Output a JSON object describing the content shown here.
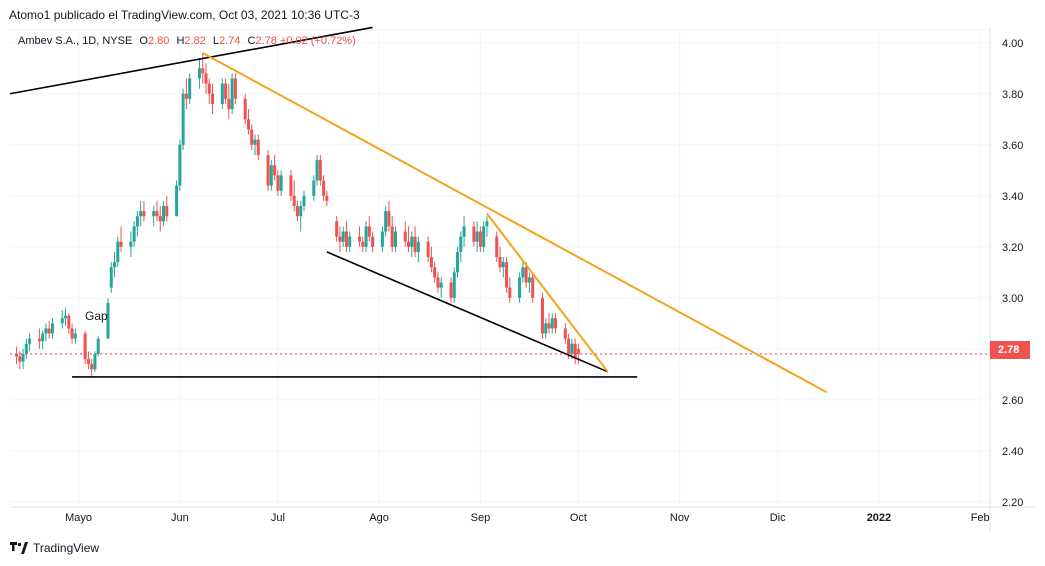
{
  "header": "Atomo1 publicado el TradingView.com, Oct 03, 2021 10:36 UTC-3",
  "legend": {
    "symbol": "Ambev S.A., 1D, NYSE",
    "o_label": "O",
    "o_value": "2.80",
    "h_label": "H",
    "h_value": "2.82",
    "l_label": "L",
    "l_value": "2.74",
    "c_label": "C",
    "c_value": "2.78",
    "change": "+0.02 (+0.72%)"
  },
  "annotation": "Gap",
  "footer": "TradingView",
  "colors": {
    "up": "#26a69a",
    "down": "#ef5350",
    "trend_orange": "#f7a21b",
    "trend_black": "#000000",
    "last_price": "#ef5350"
  },
  "chart_data": {
    "type": "candlestick",
    "y_axis": {
      "ticks": [
        4.0,
        3.8,
        3.6,
        3.4,
        3.2,
        3.0,
        2.8,
        2.6,
        2.4,
        2.2
      ],
      "tick_labels": [
        "4.00",
        "3.80",
        "3.60",
        "3.40",
        "3.20",
        "3.00",
        "2.80",
        "2.60",
        "2.40",
        "2.20"
      ],
      "range": [
        2.18,
        4.05
      ],
      "position": "right"
    },
    "x_axis": {
      "labels": [
        "Mayo",
        "Jun",
        "Jul",
        "Ago",
        "Sep",
        "Oct",
        "Nov",
        "Dic",
        "2022",
        "Feb"
      ],
      "range": [
        "2021-04-10",
        "2022-02-04"
      ]
    },
    "last_price": 2.78,
    "last_price_label": "2.78",
    "candles": [
      [
        "2021-04-12",
        2.78,
        2.81,
        2.74,
        2.77
      ],
      [
        "2021-04-13",
        2.77,
        2.79,
        2.72,
        2.75
      ],
      [
        "2021-04-14",
        2.75,
        2.8,
        2.72,
        2.78
      ],
      [
        "2021-04-15",
        2.78,
        2.84,
        2.76,
        2.82
      ],
      [
        "2021-04-16",
        2.82,
        2.86,
        2.79,
        2.84
      ],
      [
        "2021-04-19",
        2.84,
        2.88,
        2.8,
        2.83
      ],
      [
        "2021-04-20",
        2.83,
        2.87,
        2.8,
        2.86
      ],
      [
        "2021-04-21",
        2.86,
        2.9,
        2.83,
        2.88
      ],
      [
        "2021-04-22",
        2.88,
        2.91,
        2.84,
        2.86
      ],
      [
        "2021-04-23",
        2.86,
        2.92,
        2.84,
        2.9
      ],
      [
        "2021-04-26",
        2.9,
        2.95,
        2.88,
        2.92
      ],
      [
        "2021-04-27",
        2.92,
        2.96,
        2.89,
        2.93
      ],
      [
        "2021-04-28",
        2.93,
        2.94,
        2.86,
        2.88
      ],
      [
        "2021-04-29",
        2.88,
        2.9,
        2.82,
        2.84
      ],
      [
        "2021-04-30",
        2.84,
        2.88,
        2.82,
        2.86
      ],
      [
        "2021-05-03",
        2.86,
        2.87,
        2.74,
        2.76
      ],
      [
        "2021-05-04",
        2.76,
        2.79,
        2.72,
        2.74
      ],
      [
        "2021-05-05",
        2.74,
        2.76,
        2.69,
        2.72
      ],
      [
        "2021-05-06",
        2.72,
        2.79,
        2.71,
        2.78
      ],
      [
        "2021-05-07",
        2.78,
        2.85,
        2.77,
        2.84
      ],
      [
        "2021-05-10",
        2.84,
        3.0,
        2.84,
        2.98
      ],
      [
        "2021-05-11",
        3.04,
        3.14,
        3.02,
        3.12
      ],
      [
        "2021-05-12",
        3.12,
        3.18,
        3.08,
        3.14
      ],
      [
        "2021-05-13",
        3.14,
        3.24,
        3.12,
        3.22
      ],
      [
        "2021-05-14",
        3.22,
        3.28,
        3.18,
        3.2
      ],
      [
        "2021-05-17",
        3.2,
        3.26,
        3.16,
        3.22
      ],
      [
        "2021-05-18",
        3.22,
        3.3,
        3.2,
        3.28
      ],
      [
        "2021-05-19",
        3.28,
        3.34,
        3.24,
        3.32
      ],
      [
        "2021-05-20",
        3.32,
        3.38,
        3.28,
        3.34
      ],
      [
        "2021-05-21",
        3.34,
        3.38,
        3.3,
        3.32
      ],
      [
        "2021-05-24",
        3.32,
        3.36,
        3.28,
        3.34
      ],
      [
        "2021-05-25",
        3.34,
        3.38,
        3.3,
        3.32
      ],
      [
        "2021-05-26",
        3.32,
        3.36,
        3.26,
        3.3
      ],
      [
        "2021-05-27",
        3.3,
        3.38,
        3.28,
        3.36
      ],
      [
        "2021-05-28",
        3.36,
        3.4,
        3.3,
        3.32
      ],
      [
        "2021-05-31",
        3.32,
        3.46,
        3.32,
        3.44
      ],
      [
        "2021-06-01",
        3.44,
        3.62,
        3.42,
        3.6
      ],
      [
        "2021-06-02",
        3.6,
        3.82,
        3.58,
        3.8
      ],
      [
        "2021-06-03",
        3.8,
        3.86,
        3.74,
        3.78
      ],
      [
        "2021-06-04",
        3.78,
        3.88,
        3.76,
        3.86
      ],
      [
        "2021-06-07",
        3.86,
        3.94,
        3.82,
        3.9
      ],
      [
        "2021-06-08",
        3.9,
        3.96,
        3.84,
        3.88
      ],
      [
        "2021-06-09",
        3.88,
        3.92,
        3.8,
        3.84
      ],
      [
        "2021-06-10",
        3.84,
        3.86,
        3.76,
        3.8
      ],
      [
        "2021-06-11",
        3.8,
        3.84,
        3.72,
        3.76
      ],
      [
        "2021-06-14",
        3.76,
        3.86,
        3.74,
        3.84
      ],
      [
        "2021-06-15",
        3.84,
        3.86,
        3.76,
        3.78
      ],
      [
        "2021-06-16",
        3.78,
        3.84,
        3.7,
        3.74
      ],
      [
        "2021-06-17",
        3.74,
        3.88,
        3.72,
        3.86
      ],
      [
        "2021-06-18",
        3.86,
        3.88,
        3.76,
        3.78
      ],
      [
        "2021-06-21",
        3.78,
        3.8,
        3.68,
        3.7
      ],
      [
        "2021-06-22",
        3.7,
        3.74,
        3.64,
        3.66
      ],
      [
        "2021-06-23",
        3.66,
        3.68,
        3.58,
        3.6
      ],
      [
        "2021-06-24",
        3.6,
        3.64,
        3.56,
        3.62
      ],
      [
        "2021-06-25",
        3.62,
        3.64,
        3.54,
        3.56
      ],
      [
        "2021-06-28",
        3.56,
        3.58,
        3.42,
        3.44
      ],
      [
        "2021-06-29",
        3.44,
        3.54,
        3.42,
        3.52
      ],
      [
        "2021-06-30",
        3.52,
        3.56,
        3.46,
        3.48
      ],
      [
        "2021-07-01",
        3.48,
        3.5,
        3.4,
        3.42
      ],
      [
        "2021-07-02",
        3.42,
        3.5,
        3.4,
        3.48
      ],
      [
        "2021-07-05",
        3.48,
        3.5,
        3.38,
        3.4
      ],
      [
        "2021-07-06",
        3.4,
        3.46,
        3.34,
        3.36
      ],
      [
        "2021-07-07",
        3.36,
        3.38,
        3.3,
        3.32
      ],
      [
        "2021-07-08",
        3.32,
        3.38,
        3.26,
        3.36
      ],
      [
        "2021-07-09",
        3.36,
        3.42,
        3.34,
        3.4
      ],
      [
        "2021-07-12",
        3.4,
        3.48,
        3.38,
        3.46
      ],
      [
        "2021-07-13",
        3.46,
        3.56,
        3.44,
        3.54
      ],
      [
        "2021-07-14",
        3.54,
        3.56,
        3.44,
        3.46
      ],
      [
        "2021-07-15",
        3.46,
        3.48,
        3.38,
        3.4
      ],
      [
        "2021-07-16",
        3.4,
        3.42,
        3.36,
        3.38
      ],
      [
        "2021-07-19",
        3.3,
        3.32,
        3.22,
        3.24
      ],
      [
        "2021-07-20",
        3.24,
        3.28,
        3.18,
        3.22
      ],
      [
        "2021-07-21",
        3.22,
        3.28,
        3.2,
        3.26
      ],
      [
        "2021-07-22",
        3.26,
        3.3,
        3.18,
        3.2
      ],
      [
        "2021-07-23",
        3.2,
        3.26,
        3.18,
        3.24
      ],
      [
        "2021-07-26",
        3.24,
        3.28,
        3.2,
        3.22
      ],
      [
        "2021-07-27",
        3.22,
        3.24,
        3.18,
        3.2
      ],
      [
        "2021-07-28",
        3.2,
        3.3,
        3.18,
        3.28
      ],
      [
        "2021-07-29",
        3.28,
        3.32,
        3.22,
        3.24
      ],
      [
        "2021-07-30",
        3.24,
        3.26,
        3.18,
        3.2
      ],
      [
        "2021-08-02",
        3.2,
        3.28,
        3.18,
        3.26
      ],
      [
        "2021-08-03",
        3.26,
        3.36,
        3.24,
        3.34
      ],
      [
        "2021-08-04",
        3.34,
        3.38,
        3.26,
        3.28
      ],
      [
        "2021-08-05",
        3.28,
        3.32,
        3.18,
        3.2
      ],
      [
        "2021-08-06",
        3.2,
        3.28,
        3.18,
        3.26
      ],
      [
        "2021-08-09",
        3.26,
        3.3,
        3.2,
        3.22
      ],
      [
        "2021-08-10",
        3.22,
        3.28,
        3.18,
        3.2
      ],
      [
        "2021-08-11",
        3.2,
        3.26,
        3.16,
        3.24
      ],
      [
        "2021-08-12",
        3.24,
        3.28,
        3.16,
        3.18
      ],
      [
        "2021-08-13",
        3.18,
        3.24,
        3.14,
        3.22
      ],
      [
        "2021-08-16",
        3.22,
        3.24,
        3.14,
        3.16
      ],
      [
        "2021-08-17",
        3.16,
        3.2,
        3.1,
        3.12
      ],
      [
        "2021-08-18",
        3.12,
        3.14,
        3.06,
        3.08
      ],
      [
        "2021-08-19",
        3.08,
        3.1,
        3.02,
        3.04
      ],
      [
        "2021-08-20",
        3.04,
        3.08,
        3.0,
        3.06
      ],
      [
        "2021-08-23",
        3.06,
        3.08,
        2.98,
        3.0
      ],
      [
        "2021-08-24",
        3.0,
        3.12,
        2.98,
        3.1
      ],
      [
        "2021-08-25",
        3.1,
        3.2,
        3.08,
        3.18
      ],
      [
        "2021-08-26",
        3.18,
        3.26,
        3.14,
        3.24
      ],
      [
        "2021-08-27",
        3.24,
        3.32,
        3.2,
        3.28
      ],
      [
        "2021-08-30",
        3.28,
        3.3,
        3.2,
        3.22
      ],
      [
        "2021-08-31",
        3.22,
        3.3,
        3.18,
        3.26
      ],
      [
        "2021-09-01",
        3.26,
        3.28,
        3.18,
        3.2
      ],
      [
        "2021-09-02",
        3.2,
        3.3,
        3.18,
        3.28
      ],
      [
        "2021-09-03",
        3.28,
        3.32,
        3.24,
        3.3
      ],
      [
        "2021-09-06",
        3.24,
        3.26,
        3.14,
        3.16
      ],
      [
        "2021-09-07",
        3.16,
        3.2,
        3.1,
        3.12
      ],
      [
        "2021-09-08",
        3.12,
        3.16,
        3.08,
        3.14
      ],
      [
        "2021-09-09",
        3.14,
        3.16,
        3.02,
        3.04
      ],
      [
        "2021-09-10",
        3.04,
        3.08,
        2.98,
        3.0
      ],
      [
        "2021-09-13",
        3.0,
        3.1,
        2.98,
        3.08
      ],
      [
        "2021-09-14",
        3.08,
        3.14,
        3.06,
        3.12
      ],
      [
        "2021-09-15",
        3.12,
        3.14,
        3.04,
        3.06
      ],
      [
        "2021-09-16",
        3.06,
        3.1,
        3.02,
        3.08
      ],
      [
        "2021-09-17",
        3.08,
        3.1,
        2.98,
        3.0
      ],
      [
        "2021-09-20",
        3.0,
        3.02,
        2.84,
        2.86
      ],
      [
        "2021-09-21",
        2.86,
        2.92,
        2.84,
        2.9
      ],
      [
        "2021-09-22",
        2.9,
        2.94,
        2.86,
        2.88
      ],
      [
        "2021-09-23",
        2.88,
        2.94,
        2.86,
        2.92
      ],
      [
        "2021-09-24",
        2.92,
        2.94,
        2.86,
        2.88
      ],
      [
        "2021-09-27",
        2.88,
        2.9,
        2.82,
        2.84
      ],
      [
        "2021-09-28",
        2.84,
        2.86,
        2.76,
        2.78
      ],
      [
        "2021-09-29",
        2.78,
        2.84,
        2.76,
        2.82
      ],
      [
        "2021-09-30",
        2.82,
        2.84,
        2.74,
        2.76
      ],
      [
        "2021-10-01",
        2.8,
        2.82,
        2.74,
        2.78
      ]
    ],
    "trendlines": [
      {
        "color": "black",
        "from": [
          "2021-04-10",
          3.8
        ],
        "to": [
          "2021-07-30",
          4.06
        ]
      },
      {
        "color": "black",
        "from": [
          "2021-04-29",
          2.69
        ],
        "to": [
          "2021-10-19",
          2.69
        ]
      },
      {
        "color": "black",
        "from": [
          "2021-07-16",
          3.18
        ],
        "to": [
          "2021-10-10",
          2.71
        ]
      },
      {
        "color": "orange",
        "from": [
          "2021-06-08",
          3.96
        ],
        "to": [
          "2021-12-16",
          2.63
        ]
      },
      {
        "color": "orange",
        "from": [
          "2021-09-03",
          3.33
        ],
        "to": [
          "2021-10-10",
          2.71
        ]
      }
    ]
  }
}
